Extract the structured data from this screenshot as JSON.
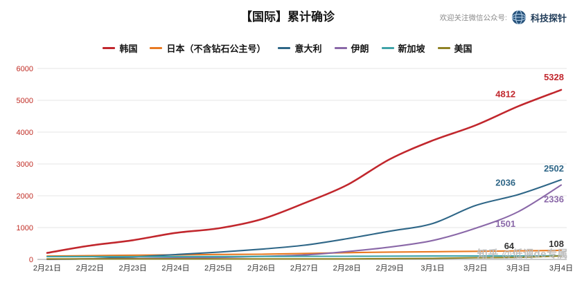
{
  "header": {
    "title": "【国际】累计确诊",
    "subscribe_text": "欢迎关注微信公众号:",
    "brand": "科技探针"
  },
  "watermark": "知乎 @低调de专属",
  "chart_data": {
    "type": "line",
    "title": "【国际】累计确诊",
    "categories": [
      "2月21日",
      "2月22日",
      "2月23日",
      "2月24日",
      "2月25日",
      "2月26日",
      "2月27日",
      "2月28日",
      "2月29日",
      "3月1日",
      "3月2日",
      "3月3日",
      "3月4日"
    ],
    "ylim": [
      0,
      6000
    ],
    "yticks": [
      0,
      1000,
      2000,
      3000,
      4000,
      5000,
      6000
    ],
    "grid": true,
    "legend_position": "top",
    "y_tick_color": "#c02b23",
    "x_tick_color": "#333333",
    "grid_color": "#e6e6e6",
    "axis_line_color": "#9a9a9a",
    "series": [
      {
        "id": "korea",
        "name": "韩国",
        "color": "#c1272d",
        "values": [
          204,
          433,
          602,
          833,
          977,
          1261,
          1766,
          2337,
          3150,
          3736,
          4212,
          4812,
          5328
        ],
        "point_labels": [
          {
            "index": 11,
            "text": "4812",
            "dx": -4,
            "dy": -13,
            "anchor": "end"
          },
          {
            "index": 12,
            "text": "5328",
            "dx": 4,
            "dy": -14,
            "anchor": "end"
          }
        ]
      },
      {
        "id": "japan",
        "name": "日本（不含钻石公主号）",
        "color": "#e87a22",
        "values": [
          105,
          119,
          132,
          144,
          157,
          164,
          186,
          210,
          230,
          241,
          254,
          268,
          284
        ],
        "point_labels": []
      },
      {
        "id": "italy",
        "name": "意大利",
        "color": "#2e6687",
        "values": [
          3,
          20,
          79,
          152,
          229,
          322,
          445,
          650,
          888,
          1128,
          1694,
          2036,
          2502
        ],
        "point_labels": [
          {
            "index": 11,
            "text": "2036",
            "dx": -4,
            "dy": -13,
            "anchor": "end"
          },
          {
            "index": 12,
            "text": "2502",
            "dx": 4,
            "dy": -12,
            "anchor": "end"
          }
        ]
      },
      {
        "id": "iran",
        "name": "伊朗",
        "color": "#8a68a8",
        "values": [
          5,
          18,
          28,
          43,
          61,
          95,
          139,
          245,
          388,
          593,
          978,
          1501,
          2336
        ],
        "point_labels": [
          {
            "index": 11,
            "text": "1501",
            "dx": -4,
            "dy": 22,
            "anchor": "end"
          },
          {
            "index": 12,
            "text": "2336",
            "dx": 4,
            "dy": 25,
            "anchor": "end"
          }
        ]
      },
      {
        "id": "singapore",
        "name": "新加坡",
        "color": "#3fa3a8",
        "values": [
          86,
          89,
          89,
          90,
          91,
          93,
          96,
          98,
          102,
          106,
          108,
          110,
          112
        ],
        "point_labels": []
      },
      {
        "id": "usa",
        "name": "美国",
        "color": "#8f8224",
        "label_color": "#333333",
        "values": [
          15,
          15,
          15,
          15,
          15,
          15,
          16,
          16,
          24,
          32,
          53,
          64,
          108
        ],
        "point_labels": [
          {
            "index": 11,
            "text": "64",
            "dx": -6,
            "dy": -12,
            "anchor": "end"
          },
          {
            "index": 12,
            "text": "108",
            "dx": 4,
            "dy": -13,
            "anchor": "end"
          }
        ]
      }
    ]
  }
}
